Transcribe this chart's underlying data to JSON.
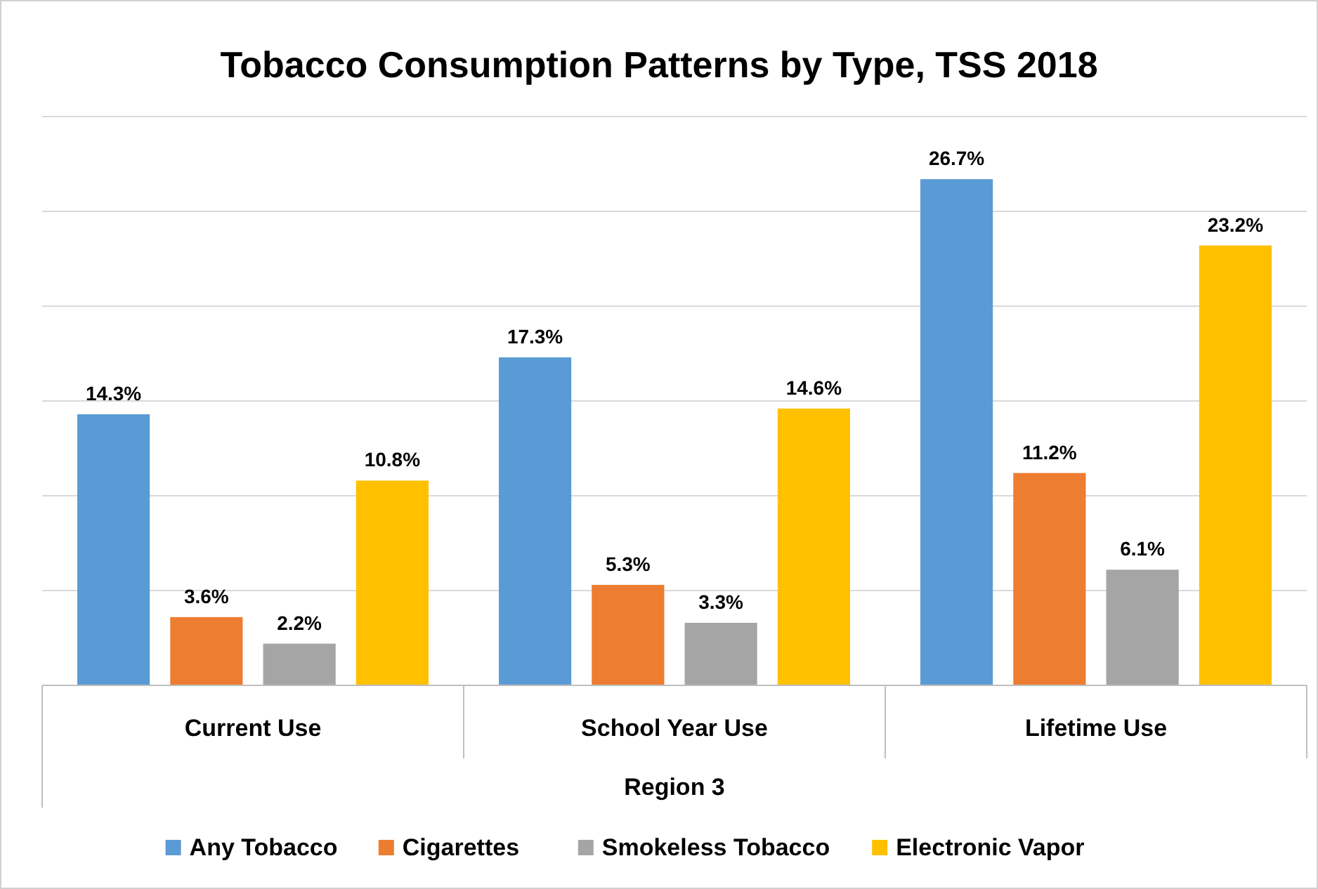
{
  "chart_data": {
    "type": "bar",
    "title": "Tobacco Consumption Patterns by Type, TSS 2018",
    "xlabel": "Region 3",
    "categories": [
      "Current Use",
      "School Year Use",
      "Lifetime Use"
    ],
    "series": [
      {
        "name": "Any Tobacco",
        "color": "#5b9bd5",
        "values": [
          14.3,
          17.3,
          26.7
        ],
        "value_labels": [
          "14.3%",
          "17.3%",
          "26.7%"
        ]
      },
      {
        "name": "Cigarettes",
        "color": "#ed7d31",
        "values": [
          3.6,
          5.3,
          11.2
        ],
        "value_labels": [
          "3.6%",
          "5.3%",
          "11.2%"
        ]
      },
      {
        "name": "Smokeless Tobacco",
        "color": "#a5a5a5",
        "values": [
          2.2,
          3.3,
          6.1
        ],
        "value_labels": [
          "2.2%",
          "3.3%",
          "6.1%"
        ]
      },
      {
        "name": "Electronic Vapor",
        "color": "#ffc000",
        "values": [
          10.8,
          14.6,
          23.2
        ],
        "value_labels": [
          "10.8%",
          "14.6%",
          "23.2%"
        ]
      }
    ],
    "ylim": [
      0,
      30
    ],
    "yticks": [
      {
        "value": 0,
        "label": null
      },
      {
        "value": 5,
        "label": null
      },
      {
        "value": 10,
        "label": null
      },
      {
        "value": 15,
        "label": null
      },
      {
        "value": 20,
        "label": null
      },
      {
        "value": 25,
        "label": null
      },
      {
        "value": 30,
        "label": null
      }
    ],
    "tick_labels": "x",
    "grid": "y",
    "legend": "bottom"
  }
}
